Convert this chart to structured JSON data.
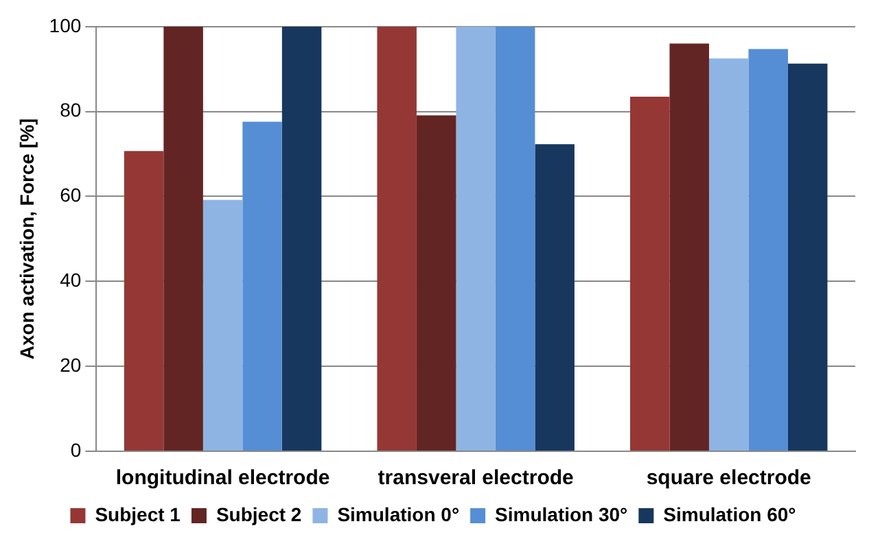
{
  "chart_data": {
    "type": "bar",
    "ylabel": "Axon activation, Force [%]",
    "categories": [
      "longitudinal electrode",
      "transveral electrode",
      "square electrode"
    ],
    "series": [
      {
        "name": "Subject 1",
        "color": "#953735",
        "values": [
          70.7,
          100,
          83.5
        ]
      },
      {
        "name": "Subject 2",
        "color": "#632523",
        "values": [
          100,
          79.1,
          96
        ]
      },
      {
        "name": "Simulation 0°",
        "color": "#8eb4e3",
        "values": [
          59.2,
          100,
          92.5
        ]
      },
      {
        "name": "Simulation 30°",
        "color": "#558ed5",
        "values": [
          77.6,
          100,
          94.7
        ]
      },
      {
        "name": "Simulation 60°",
        "color": "#17375e",
        "values": [
          100,
          72.3,
          91.3
        ]
      }
    ],
    "ylim": [
      0,
      100
    ],
    "yticks": [
      0,
      20,
      40,
      60,
      80,
      100
    ],
    "grid": "y",
    "legend": "bottom"
  }
}
